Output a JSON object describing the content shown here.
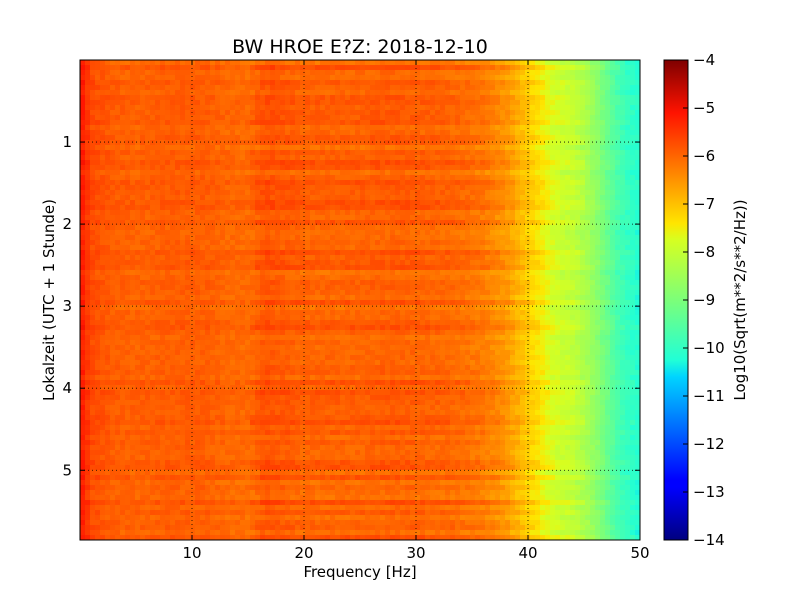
{
  "chart_data": {
    "type": "heatmap",
    "title": "BW HROE E?Z: 2018-12-10",
    "xlabel": "Frequency [Hz]",
    "ylabel": "Lokalzeit (UTC + 1 Stunde)",
    "xlim": [
      0,
      50
    ],
    "ylim": [
      5.85,
      0
    ],
    "x_ticks": [
      10,
      20,
      30,
      40,
      50
    ],
    "x_tick_labels": [
      "10",
      "20",
      "30",
      "40",
      "50"
    ],
    "y_ticks": [
      1,
      2,
      3,
      4,
      5
    ],
    "y_tick_labels": [
      "1",
      "2",
      "3",
      "4",
      "5"
    ],
    "grid": true,
    "colorbar": {
      "label": "Log10(Sqrt(m**2/s**2/Hz))",
      "range": [
        -14,
        -4
      ],
      "ticks": [
        -4,
        -5,
        -6,
        -7,
        -8,
        -9,
        -10,
        -11,
        -12,
        -13,
        -14
      ],
      "tick_labels": [
        "−4",
        "−5",
        "−6",
        "−7",
        "−8",
        "−9",
        "−10",
        "−11",
        "−12",
        "−13",
        "−14"
      ],
      "colormap": "jet"
    },
    "frequency_profile": {
      "frequency_hz": [
        0,
        0.5,
        1,
        3,
        5,
        8,
        11,
        13,
        15,
        16.5,
        18,
        20,
        25,
        28,
        30,
        33,
        36,
        38,
        39,
        40,
        41,
        42,
        43,
        44,
        45,
        46,
        47,
        48,
        49,
        50
      ],
      "log10_amplitude": [
        -5.1,
        -5.4,
        -5.7,
        -5.9,
        -5.95,
        -5.9,
        -5.9,
        -6.0,
        -6.05,
        -5.8,
        -5.85,
        -5.95,
        -5.95,
        -5.9,
        -5.95,
        -6.0,
        -6.2,
        -6.5,
        -6.8,
        -7.1,
        -7.4,
        -7.7,
        -7.9,
        -8.0,
        -8.3,
        -8.7,
        -9.2,
        -9.7,
        -10.0,
        -10.2
      ]
    }
  }
}
